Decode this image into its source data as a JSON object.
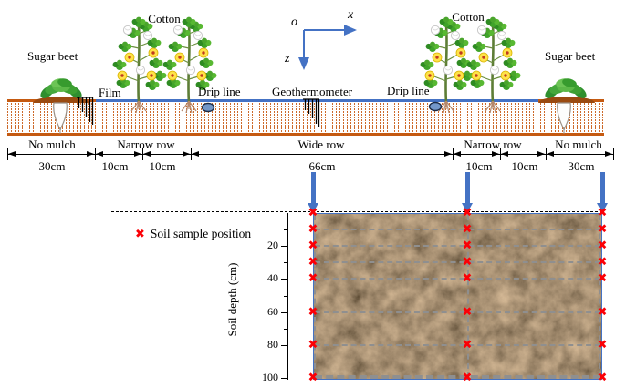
{
  "labels": {
    "sugar_beet_left": "Sugar beet",
    "cotton_left": "Cotton",
    "film": "Film",
    "drip_line_left": "Drip line",
    "geothermometer": "Geothermometer",
    "drip_line_right": "Drip line",
    "cotton_right": "Cotton",
    "sugar_beet_right": "Sugar beet"
  },
  "coord_axes": {
    "origin": "o",
    "x_axis": "x",
    "z_axis": "z"
  },
  "surface_dimensions": {
    "zone_labels": [
      "No mulch",
      "Narrow row",
      "Wide row",
      "Narrow row",
      "No mulch"
    ],
    "segment_sizes": [
      "30cm",
      "10cm",
      "10cm",
      "66cm",
      "10cm",
      "10cm",
      "30cm"
    ]
  },
  "soil_profile": {
    "legend_label": "Soil sample position",
    "marker_glyph": "✖",
    "ylabel": "Soil depth (cm)",
    "axis_tick_labels": [
      20,
      40,
      60,
      80,
      100
    ],
    "axis_minor_tick_depths": [
      10,
      30,
      50,
      70,
      90
    ],
    "sample_depths_cm": [
      0,
      10,
      20,
      30,
      40,
      60,
      80,
      100
    ],
    "sample_column_count": 3,
    "gridline_depths_cm": [
      10,
      20,
      30,
      40,
      60,
      80,
      100
    ]
  },
  "colors": {
    "accent_blue": "#4472C4",
    "soil_line_orange": "#C55A11",
    "marker_red": "#FB0006",
    "dash_gray": "#8F8F8F"
  }
}
